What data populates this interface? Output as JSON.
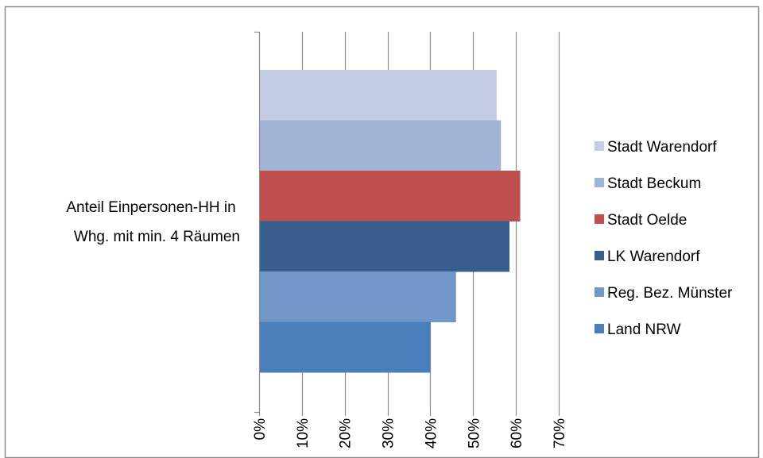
{
  "chart_data": {
    "type": "bar",
    "orientation": "horizontal",
    "categories": [
      "Anteil Einpersonen-HH in Whg. mit min. 4 Räumen"
    ],
    "category_label_lines": [
      "Anteil Einpersonen-HH in",
      "Whg. mit min. 4 Räumen"
    ],
    "series": [
      {
        "name": "Stadt Warendorf",
        "values": [
          55.5
        ],
        "color": "#c4cde4"
      },
      {
        "name": "Stadt Beckum",
        "values": [
          56.5
        ],
        "color": "#a2b4d6"
      },
      {
        "name": "Stadt Oelde",
        "values": [
          61.0
        ],
        "color": "#c0504d"
      },
      {
        "name": "LK Warendorf",
        "values": [
          58.5
        ],
        "color": "#375e8c"
      },
      {
        "name": "Reg. Bez. Münster",
        "values": [
          46.0
        ],
        "color": "#7196c8"
      },
      {
        "name": "Land NRW",
        "values": [
          40.0
        ],
        "color": "#4a7ebb"
      }
    ],
    "x_ticks": [
      "0%",
      "10%",
      "20%",
      "30%",
      "40%",
      "50%",
      "60%",
      "70%"
    ],
    "xlim": [
      0,
      70
    ],
    "grid": true,
    "legend_position": "right",
    "title": "",
    "xlabel": "",
    "ylabel": ""
  }
}
